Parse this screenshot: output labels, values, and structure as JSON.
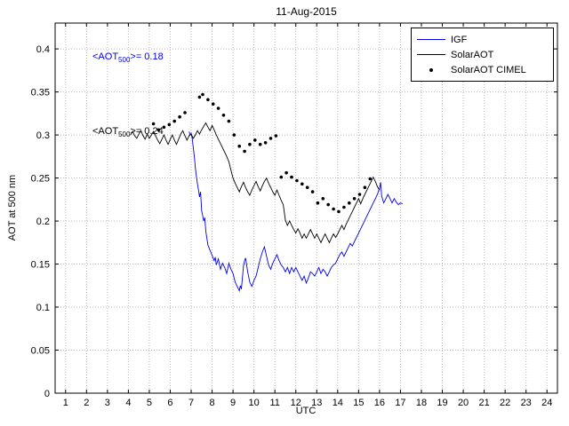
{
  "title": "11-Aug-2015",
  "annotations": [
    {
      "prefix": "<AOT",
      "sub": "500",
      "suffix": ">= 0.18",
      "color": "#0000ee"
    },
    {
      "prefix": "<AOT",
      "sub": "500",
      "suffix": ">= 0.24",
      "color": "#000000"
    }
  ],
  "legend": [
    {
      "label": "IGF",
      "type": "line",
      "color": "#0000ee"
    },
    {
      "label": "SolarAOT",
      "type": "line",
      "color": "#000000"
    },
    {
      "label": "SolarAOT CIMEL",
      "type": "dots",
      "color": "#000000"
    }
  ],
  "chart_data": {
    "type": "line",
    "title": "11-Aug-2015",
    "xlabel": "UTC",
    "ylabel": "AOT at 500 nm",
    "xlim": [
      0.5,
      24.5
    ],
    "ylim": [
      0,
      0.43
    ],
    "grid": true,
    "grid_color": "#b8b8b8",
    "legend_position": "top-right",
    "xticks": [
      1,
      2,
      3,
      4,
      5,
      6,
      7,
      8,
      9,
      10,
      11,
      12,
      13,
      14,
      15,
      16,
      17,
      18,
      19,
      20,
      21,
      22,
      23,
      24
    ],
    "xtick_labels": [
      "1",
      "2",
      "3",
      "4",
      "5",
      "6",
      "7",
      "8",
      "9",
      "10",
      "11",
      "12",
      "13",
      "14",
      "15",
      "16",
      "17",
      "18",
      "19",
      "20",
      "21",
      "22",
      "23",
      "24"
    ],
    "yticks": [
      0,
      0.05,
      0.1,
      0.15,
      0.2,
      0.25,
      0.3,
      0.35,
      0.4
    ],
    "ytick_labels": [
      "0",
      "0.05",
      "0.1",
      "0.15",
      "0.2",
      "0.25",
      "0.3",
      "0.35",
      "0.4"
    ],
    "series": [
      {
        "id": "igf",
        "name": "IGF",
        "style": "line",
        "color": "#0000ee",
        "points": [
          [
            6.9,
            0.304
          ],
          [
            6.95,
            0.3
          ],
          [
            7.0,
            0.302
          ],
          [
            7.05,
            0.296
          ],
          [
            7.1,
            0.285
          ],
          [
            7.15,
            0.275
          ],
          [
            7.2,
            0.262
          ],
          [
            7.25,
            0.252
          ],
          [
            7.3,
            0.243
          ],
          [
            7.35,
            0.236
          ],
          [
            7.4,
            0.228
          ],
          [
            7.45,
            0.234
          ],
          [
            7.5,
            0.212
          ],
          [
            7.55,
            0.206
          ],
          [
            7.6,
            0.2
          ],
          [
            7.65,
            0.204
          ],
          [
            7.7,
            0.188
          ],
          [
            7.75,
            0.18
          ],
          [
            7.8,
            0.172
          ],
          [
            7.9,
            0.166
          ],
          [
            8.0,
            0.16
          ],
          [
            8.1,
            0.154
          ],
          [
            8.15,
            0.158
          ],
          [
            8.2,
            0.149
          ],
          [
            8.3,
            0.156
          ],
          [
            8.4,
            0.144
          ],
          [
            8.5,
            0.151
          ],
          [
            8.6,
            0.146
          ],
          [
            8.7,
            0.139
          ],
          [
            8.8,
            0.151
          ],
          [
            8.9,
            0.144
          ],
          [
            9.0,
            0.139
          ],
          [
            9.1,
            0.129
          ],
          [
            9.2,
            0.124
          ],
          [
            9.3,
            0.119
          ],
          [
            9.35,
            0.125
          ],
          [
            9.4,
            0.121
          ],
          [
            9.5,
            0.148
          ],
          [
            9.55,
            0.154
          ],
          [
            9.6,
            0.157
          ],
          [
            9.7,
            0.141
          ],
          [
            9.8,
            0.129
          ],
          [
            9.9,
            0.124
          ],
          [
            10.0,
            0.131
          ],
          [
            10.1,
            0.136
          ],
          [
            10.2,
            0.146
          ],
          [
            10.3,
            0.156
          ],
          [
            10.4,
            0.164
          ],
          [
            10.5,
            0.17
          ],
          [
            10.6,
            0.159
          ],
          [
            10.7,
            0.149
          ],
          [
            10.8,
            0.144
          ],
          [
            10.9,
            0.151
          ],
          [
            11.0,
            0.156
          ],
          [
            11.1,
            0.161
          ],
          [
            11.2,
            0.154
          ],
          [
            11.3,
            0.149
          ],
          [
            11.4,
            0.146
          ],
          [
            11.5,
            0.141
          ],
          [
            11.6,
            0.146
          ],
          [
            11.7,
            0.139
          ],
          [
            11.8,
            0.146
          ],
          [
            11.9,
            0.141
          ],
          [
            12.0,
            0.146
          ],
          [
            12.1,
            0.141
          ],
          [
            12.2,
            0.136
          ],
          [
            12.3,
            0.131
          ],
          [
            12.4,
            0.136
          ],
          [
            12.5,
            0.128
          ],
          [
            12.6,
            0.134
          ],
          [
            12.7,
            0.141
          ],
          [
            12.8,
            0.139
          ],
          [
            12.9,
            0.136
          ],
          [
            13.0,
            0.141
          ],
          [
            13.1,
            0.146
          ],
          [
            13.2,
            0.139
          ],
          [
            13.3,
            0.144
          ],
          [
            13.4,
            0.141
          ],
          [
            13.5,
            0.136
          ],
          [
            13.6,
            0.141
          ],
          [
            13.7,
            0.146
          ],
          [
            13.8,
            0.149
          ],
          [
            13.9,
            0.151
          ],
          [
            14.0,
            0.156
          ],
          [
            14.1,
            0.161
          ],
          [
            14.2,
            0.164
          ],
          [
            14.3,
            0.159
          ],
          [
            14.4,
            0.164
          ],
          [
            14.5,
            0.169
          ],
          [
            14.6,
            0.174
          ],
          [
            14.7,
            0.171
          ],
          [
            14.8,
            0.176
          ],
          [
            14.9,
            0.181
          ],
          [
            15.0,
            0.186
          ],
          [
            15.1,
            0.191
          ],
          [
            15.2,
            0.196
          ],
          [
            15.3,
            0.201
          ],
          [
            15.4,
            0.206
          ],
          [
            15.5,
            0.211
          ],
          [
            15.6,
            0.216
          ],
          [
            15.7,
            0.221
          ],
          [
            15.8,
            0.226
          ],
          [
            15.9,
            0.231
          ],
          [
            16.0,
            0.238
          ],
          [
            16.05,
            0.245
          ],
          [
            16.1,
            0.229
          ],
          [
            16.2,
            0.221
          ],
          [
            16.3,
            0.226
          ],
          [
            16.4,
            0.231
          ],
          [
            16.5,
            0.226
          ],
          [
            16.6,
            0.221
          ],
          [
            16.7,
            0.226
          ],
          [
            16.8,
            0.222
          ],
          [
            16.9,
            0.219
          ],
          [
            17.0,
            0.221
          ],
          [
            17.1,
            0.22
          ]
        ]
      },
      {
        "id": "solaraot",
        "name": "SolarAOT",
        "style": "line",
        "color": "#000000",
        "points": [
          [
            4.1,
            0.3
          ],
          [
            4.2,
            0.304
          ],
          [
            4.3,
            0.299
          ],
          [
            4.4,
            0.296
          ],
          [
            4.5,
            0.301
          ],
          [
            4.6,
            0.305
          ],
          [
            4.7,
            0.299
          ],
          [
            4.8,
            0.295
          ],
          [
            4.9,
            0.301
          ],
          [
            5.0,
            0.296
          ],
          [
            5.1,
            0.3
          ],
          [
            5.2,
            0.304
          ],
          [
            5.3,
            0.299
          ],
          [
            5.4,
            0.294
          ],
          [
            5.5,
            0.29
          ],
          [
            5.6,
            0.295
          ],
          [
            5.7,
            0.3
          ],
          [
            5.8,
            0.294
          ],
          [
            5.9,
            0.289
          ],
          [
            6.0,
            0.295
          ],
          [
            6.1,
            0.3
          ],
          [
            6.2,
            0.294
          ],
          [
            6.3,
            0.289
          ],
          [
            6.4,
            0.295
          ],
          [
            6.5,
            0.301
          ],
          [
            6.6,
            0.305
          ],
          [
            6.7,
            0.299
          ],
          [
            6.8,
            0.294
          ],
          [
            6.9,
            0.299
          ],
          [
            7.0,
            0.301
          ],
          [
            7.1,
            0.296
          ],
          [
            7.2,
            0.3
          ],
          [
            7.3,
            0.305
          ],
          [
            7.4,
            0.301
          ],
          [
            7.5,
            0.306
          ],
          [
            7.6,
            0.31
          ],
          [
            7.7,
            0.314
          ],
          [
            7.8,
            0.309
          ],
          [
            7.9,
            0.305
          ],
          [
            8.0,
            0.311
          ],
          [
            8.1,
            0.306
          ],
          [
            8.2,
            0.3
          ],
          [
            8.3,
            0.295
          ],
          [
            8.4,
            0.29
          ],
          [
            8.5,
            0.285
          ],
          [
            8.6,
            0.28
          ],
          [
            8.7,
            0.275
          ],
          [
            8.8,
            0.269
          ],
          [
            8.9,
            0.259
          ],
          [
            9.0,
            0.25
          ],
          [
            9.1,
            0.244
          ],
          [
            9.2,
            0.239
          ],
          [
            9.3,
            0.234
          ],
          [
            9.4,
            0.24
          ],
          [
            9.5,
            0.245
          ],
          [
            9.6,
            0.239
          ],
          [
            9.7,
            0.234
          ],
          [
            9.8,
            0.23
          ],
          [
            9.9,
            0.236
          ],
          [
            10.0,
            0.241
          ],
          [
            10.1,
            0.246
          ],
          [
            10.2,
            0.24
          ],
          [
            10.3,
            0.235
          ],
          [
            10.4,
            0.241
          ],
          [
            10.5,
            0.246
          ],
          [
            10.6,
            0.25
          ],
          [
            10.7,
            0.244
          ],
          [
            10.8,
            0.239
          ],
          [
            10.9,
            0.234
          ],
          [
            11.0,
            0.23
          ],
          [
            11.1,
            0.236
          ],
          [
            11.2,
            0.23
          ],
          [
            11.3,
            0.224
          ],
          [
            11.4,
            0.219
          ],
          [
            11.5,
            0.201
          ],
          [
            11.6,
            0.195
          ],
          [
            11.7,
            0.2
          ],
          [
            11.8,
            0.195
          ],
          [
            11.9,
            0.19
          ],
          [
            12.0,
            0.186
          ],
          [
            12.1,
            0.191
          ],
          [
            12.2,
            0.186
          ],
          [
            12.3,
            0.18
          ],
          [
            12.4,
            0.185
          ],
          [
            12.5,
            0.18
          ],
          [
            12.6,
            0.185
          ],
          [
            12.7,
            0.19
          ],
          [
            12.8,
            0.185
          ],
          [
            12.9,
            0.18
          ],
          [
            13.0,
            0.185
          ],
          [
            13.1,
            0.18
          ],
          [
            13.2,
            0.175
          ],
          [
            13.3,
            0.18
          ],
          [
            13.4,
            0.185
          ],
          [
            13.5,
            0.18
          ],
          [
            13.6,
            0.175
          ],
          [
            13.7,
            0.18
          ],
          [
            13.8,
            0.185
          ],
          [
            13.9,
            0.181
          ],
          [
            14.0,
            0.185
          ],
          [
            14.1,
            0.19
          ],
          [
            14.2,
            0.195
          ],
          [
            14.3,
            0.19
          ],
          [
            14.4,
            0.196
          ],
          [
            14.5,
            0.201
          ],
          [
            14.6,
            0.206
          ],
          [
            14.7,
            0.211
          ],
          [
            14.8,
            0.216
          ],
          [
            14.9,
            0.221
          ],
          [
            15.0,
            0.226
          ],
          [
            15.1,
            0.22
          ],
          [
            15.2,
            0.226
          ],
          [
            15.3,
            0.231
          ],
          [
            15.4,
            0.236
          ],
          [
            15.5,
            0.241
          ],
          [
            15.6,
            0.246
          ],
          [
            15.7,
            0.251
          ],
          [
            15.8,
            0.246
          ],
          [
            15.9,
            0.24
          ],
          [
            16.0,
            0.236
          ]
        ]
      },
      {
        "id": "cimel",
        "name": "SolarAOT CIMEL",
        "style": "scatter",
        "color": "#000000",
        "points": [
          [
            5.2,
            0.313
          ],
          [
            5.45,
            0.306
          ],
          [
            5.7,
            0.309
          ],
          [
            5.95,
            0.312
          ],
          [
            6.2,
            0.316
          ],
          [
            6.45,
            0.321
          ],
          [
            6.7,
            0.326
          ],
          [
            7.4,
            0.344
          ],
          [
            7.55,
            0.347
          ],
          [
            7.8,
            0.341
          ],
          [
            8.05,
            0.336
          ],
          [
            8.3,
            0.331
          ],
          [
            8.55,
            0.323
          ],
          [
            8.8,
            0.316
          ],
          [
            9.05,
            0.3
          ],
          [
            9.3,
            0.287
          ],
          [
            9.55,
            0.281
          ],
          [
            9.8,
            0.289
          ],
          [
            10.05,
            0.294
          ],
          [
            10.3,
            0.289
          ],
          [
            10.55,
            0.291
          ],
          [
            10.8,
            0.296
          ],
          [
            11.05,
            0.299
          ],
          [
            11.3,
            0.251
          ],
          [
            11.55,
            0.256
          ],
          [
            11.8,
            0.251
          ],
          [
            12.05,
            0.247
          ],
          [
            12.3,
            0.243
          ],
          [
            12.55,
            0.239
          ],
          [
            12.8,
            0.234
          ],
          [
            13.05,
            0.221
          ],
          [
            13.3,
            0.226
          ],
          [
            13.55,
            0.219
          ],
          [
            13.8,
            0.214
          ],
          [
            14.05,
            0.211
          ],
          [
            14.3,
            0.216
          ],
          [
            14.55,
            0.221
          ],
          [
            14.8,
            0.226
          ],
          [
            15.05,
            0.231
          ],
          [
            15.3,
            0.239
          ],
          [
            15.55,
            0.249
          ]
        ]
      }
    ]
  }
}
